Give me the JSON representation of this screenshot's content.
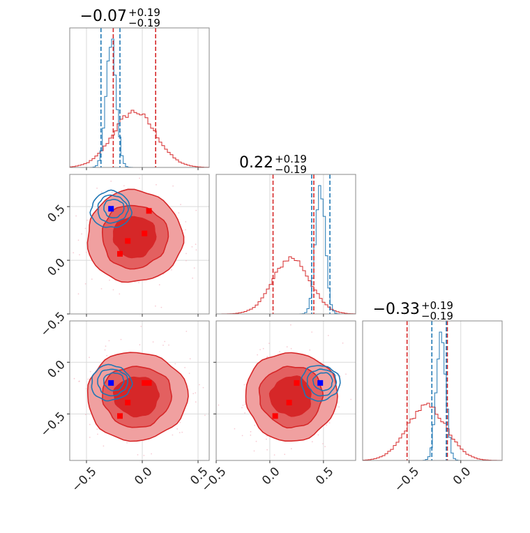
{
  "chart_data": {
    "type": "corner",
    "colors": {
      "red": "#d62728",
      "blue": "#1f77b4",
      "red_fill_light": "#f0a0a0",
      "red_fill_mid": "#e36060",
      "red_fill_dark": "#d62728",
      "scatter": "#f4b6c2"
    },
    "parameters": [
      {
        "title_main": "−0.07",
        "title_sup": "+0.19",
        "title_sub": "−0.19",
        "range": [
          -0.65,
          0.6
        ]
      },
      {
        "title_main": "0.22",
        "title_sup": "+0.19",
        "title_sub": "−0.19",
        "range": [
          -0.5,
          0.8
        ]
      },
      {
        "title_main": "−0.33",
        "title_sup": "+0.19",
        "title_sub": "−0.19",
        "range": [
          -0.95,
          0.4
        ]
      }
    ],
    "ticks": {
      "p0": [
        -0.5,
        0.0,
        0.5
      ],
      "p1": [
        -0.5,
        0.0,
        0.5
      ],
      "p2": [
        -0.5,
        0.0
      ]
    },
    "tick_labels": {
      "p0": [
        "−0.5",
        "0.0",
        "0.5"
      ],
      "p1": [
        "−0.5",
        "0.0",
        "0.5"
      ],
      "p2": [
        "−0.5",
        "0.0"
      ]
    },
    "diagonals": [
      {
        "param": 0,
        "red_quantiles": [
          -0.26,
          0.12
        ],
        "blue_quantiles": [
          -0.37,
          -0.2
        ],
        "red_hist": {
          "center": -0.07,
          "sigma": 0.19
        },
        "blue_hist": {
          "center": -0.28,
          "sigma": 0.045
        }
      },
      {
        "param": 1,
        "red_quantiles": [
          0.03,
          0.41
        ],
        "blue_quantiles": [
          0.39,
          0.56
        ],
        "red_hist": {
          "center": 0.2,
          "sigma": 0.17
        },
        "blue_hist": {
          "center": 0.47,
          "sigma": 0.045
        }
      },
      {
        "param": 2,
        "red_quantiles": [
          -0.52,
          -0.13
        ],
        "blue_quantiles": [
          -0.28,
          -0.14
        ],
        "red_hist": {
          "center": -0.33,
          "sigma": 0.19
        },
        "blue_hist": {
          "center": -0.19,
          "sigma": 0.045
        }
      }
    ],
    "panels_2d": [
      {
        "x_param": 0,
        "y_param": 1,
        "red_center": [
          -0.07,
          0.22
        ],
        "red_sigma": [
          0.19,
          0.19
        ],
        "blue_center": [
          -0.28,
          0.47
        ],
        "blue_sigma": [
          0.05,
          0.05
        ],
        "red_markers": [
          [
            -0.13,
            0.18
          ],
          [
            -0.2,
            0.06
          ],
          [
            0.02,
            0.25
          ],
          [
            0.06,
            0.46
          ]
        ],
        "blue_markers": [
          [
            -0.28,
            0.48
          ]
        ]
      },
      {
        "x_param": 0,
        "y_param": 2,
        "red_center": [
          -0.05,
          -0.33
        ],
        "red_sigma": [
          0.2,
          0.19
        ],
        "blue_center": [
          -0.28,
          -0.2
        ],
        "blue_sigma": [
          0.05,
          0.05
        ],
        "red_markers": [
          [
            -0.13,
            -0.39
          ],
          [
            -0.2,
            -0.52
          ],
          [
            0.02,
            -0.2
          ],
          [
            0.06,
            -0.2
          ]
        ],
        "blue_markers": [
          [
            -0.28,
            -0.2
          ]
        ]
      },
      {
        "x_param": 1,
        "y_param": 2,
        "red_center": [
          0.2,
          -0.33
        ],
        "red_sigma": [
          0.19,
          0.19
        ],
        "blue_center": [
          0.47,
          -0.2
        ],
        "blue_sigma": [
          0.05,
          0.05
        ],
        "red_markers": [
          [
            0.18,
            -0.39
          ],
          [
            0.05,
            -0.52
          ],
          [
            0.25,
            -0.2
          ]
        ],
        "blue_markers": [
          [
            0.47,
            -0.2
          ]
        ]
      }
    ],
    "grid": true
  }
}
